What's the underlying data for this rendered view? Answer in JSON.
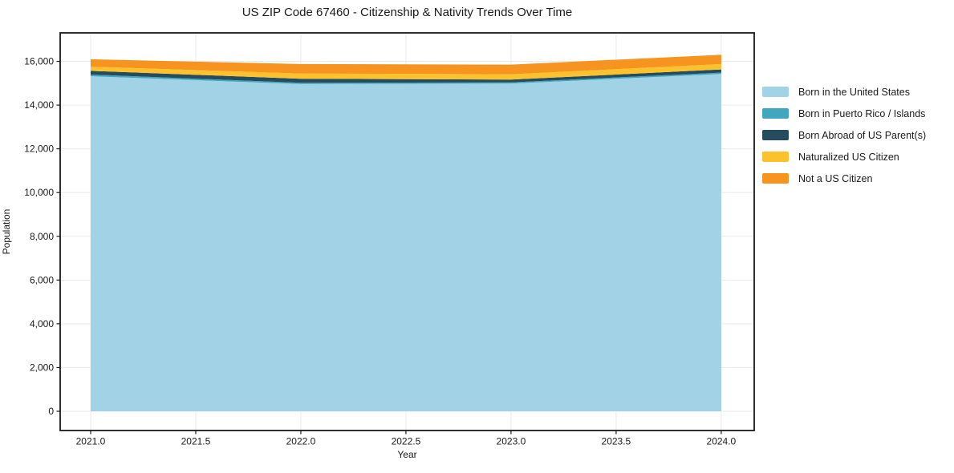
{
  "chart_data": {
    "type": "area",
    "stacked": true,
    "title": "US ZIP Code 67460 - Citizenship & Nativity Trends Over Time",
    "xlabel": "Year",
    "ylabel": "Population",
    "x": [
      2021,
      2022,
      2023,
      2024
    ],
    "series": [
      {
        "name": "Born in the United States",
        "color": "#a2d2e6",
        "values": [
          15320,
          14960,
          14985,
          15420
        ]
      },
      {
        "name": "Born in Puerto Rico / Islands",
        "color": "#41a6bf",
        "values": [
          75,
          60,
          55,
          65
        ]
      },
      {
        "name": "Born Abroad of US Parent(s)",
        "color": "#254b5e",
        "values": [
          170,
          185,
          125,
          145
        ]
      },
      {
        "name": "Naturalized US Citizen",
        "color": "#fcc22e",
        "values": [
          190,
          240,
          245,
          245
        ]
      },
      {
        "name": "Not a US Citizen",
        "color": "#f6941f",
        "values": [
          340,
          430,
          440,
          425
        ]
      }
    ],
    "totals": [
      16095,
      15875,
      15850,
      16300
    ],
    "xticks": [
      2021.0,
      2021.5,
      2022.0,
      2022.5,
      2023.0,
      2023.5,
      2024.0
    ],
    "xtick_labels": [
      "2021.0",
      "2021.5",
      "2022.0",
      "2022.5",
      "2023.0",
      "2023.5",
      "2024.0"
    ],
    "yticks": [
      0,
      2000,
      4000,
      6000,
      8000,
      10000,
      12000,
      14000,
      16000
    ],
    "ytick_labels": [
      "0",
      "2,000",
      "4,000",
      "6,000",
      "8,000",
      "10,000",
      "12,000",
      "14,000",
      "16,000"
    ],
    "xlim": [
      2020.855,
      2024.157
    ],
    "ylim": [
      -880,
      17302
    ],
    "grid": true,
    "legend_position": "right of plot, top",
    "colors": {
      "grid": "#eaeaea",
      "spine": "#1a1a1a",
      "text": "#1a1a1a",
      "background": "#ffffff"
    }
  }
}
